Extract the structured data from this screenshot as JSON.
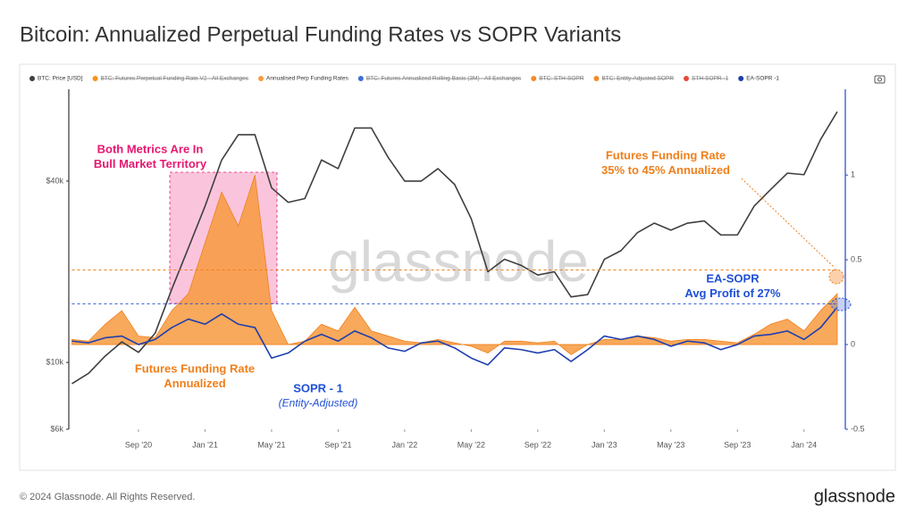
{
  "chart_data": {
    "type": "line",
    "title": "Bitcoin: Annualized Perpetual Funding Rates vs SOPR Variants",
    "watermark": "glassnode",
    "x": [
      "2020-05",
      "2020-06",
      "2020-07",
      "2020-08",
      "2020-09",
      "2020-10",
      "2020-11",
      "2020-12",
      "2021-01",
      "2021-02",
      "2021-03",
      "2021-04",
      "2021-05",
      "2021-06",
      "2021-07",
      "2021-08",
      "2021-09",
      "2021-10",
      "2021-11",
      "2021-12",
      "2022-01",
      "2022-02",
      "2022-03",
      "2022-04",
      "2022-05",
      "2022-06",
      "2022-07",
      "2022-08",
      "2022-09",
      "2022-10",
      "2022-11",
      "2022-12",
      "2023-01",
      "2023-02",
      "2023-03",
      "2023-04",
      "2023-05",
      "2023-06",
      "2023-07",
      "2023-08",
      "2023-09",
      "2023-10",
      "2023-11",
      "2023-12",
      "2024-01",
      "2024-02",
      "2024-03"
    ],
    "xlim": [
      "2020-05",
      "2024-03"
    ],
    "xticks": [
      {
        "value": "2020-09",
        "label": "Sep '20"
      },
      {
        "value": "2021-01",
        "label": "Jan '21"
      },
      {
        "value": "2021-05",
        "label": "May '21"
      },
      {
        "value": "2021-09",
        "label": "Sep '21"
      },
      {
        "value": "2022-01",
        "label": "Jan '22"
      },
      {
        "value": "2022-05",
        "label": "May '22"
      },
      {
        "value": "2022-09",
        "label": "Sep '22"
      },
      {
        "value": "2023-01",
        "label": "Jan '23"
      },
      {
        "value": "2023-05",
        "label": "May '23"
      },
      {
        "value": "2023-09",
        "label": "Sep '23"
      },
      {
        "value": "2024-01",
        "label": "Jan '24"
      }
    ],
    "ylim": [
      6000,
      78000
    ],
    "y_scale": "log",
    "yticks": [
      {
        "value": 6000,
        "label": "$6k"
      },
      {
        "value": 10000,
        "label": "$10k"
      },
      {
        "value": 40000,
        "label": "$40k"
      }
    ],
    "y2lim": [
      -0.5,
      1.48
    ],
    "y2ticks": [
      -0.5,
      0,
      0.5,
      1
    ],
    "series": [
      {
        "name": "BTC: Price [USD]",
        "color": "#3f3f3f",
        "values": [
          8500,
          9200,
          10500,
          11700,
          10800,
          12500,
          17500,
          24000,
          33000,
          47000,
          57000,
          57000,
          38000,
          34000,
          35000,
          47000,
          44000,
          60000,
          60000,
          48000,
          40000,
          40000,
          44000,
          39000,
          30000,
          20000,
          22000,
          21000,
          19500,
          20000,
          16500,
          16800,
          22000,
          23500,
          27000,
          29000,
          27500,
          29000,
          29500,
          26500,
          26500,
          33000,
          37500,
          42500,
          42000,
          55000,
          68000
        ]
      },
      {
        "name": "BTC: Futures Perpetual Funding Rate V2 - All Exchanges",
        "color": "#f7931a",
        "hidden": true
      },
      {
        "name": "Annualised Perp Funding Rates",
        "color": "#f79a3e",
        "axis": "y2",
        "style": "area",
        "values": [
          0.03,
          0.02,
          0.12,
          0.2,
          0.05,
          0.04,
          0.2,
          0.3,
          0.6,
          0.9,
          0.7,
          1.0,
          0.2,
          0.0,
          0.02,
          0.12,
          0.08,
          0.22,
          0.08,
          0.05,
          0.02,
          0.01,
          0.03,
          0.01,
          -0.01,
          -0.05,
          0.02,
          0.02,
          0.01,
          0.02,
          -0.06,
          0.0,
          0.03,
          0.03,
          0.05,
          0.04,
          0.02,
          0.03,
          0.03,
          0.02,
          0.01,
          0.06,
          0.12,
          0.15,
          0.08,
          0.2,
          0.3
        ]
      },
      {
        "name": "BTC: Futures Annualized Rolling Basis (3M) - All Exchanges",
        "color": "#3c6ddb",
        "hidden": true
      },
      {
        "name": "BTC: STH-SOPR",
        "color": "#f28c28",
        "hidden": true
      },
      {
        "name": "BTC: Entity-Adjusted SOPR",
        "color": "#f28c28",
        "hidden": true
      },
      {
        "name": "STH-SOPR -1",
        "color": "#e5493a",
        "hidden": true
      },
      {
        "name": "EA-SOPR -1",
        "color": "#1f3fae",
        "axis": "y2",
        "values": [
          0.02,
          0.01,
          0.04,
          0.05,
          0.0,
          0.03,
          0.1,
          0.15,
          0.12,
          0.18,
          0.12,
          0.1,
          -0.08,
          -0.05,
          0.02,
          0.06,
          0.02,
          0.08,
          0.04,
          -0.02,
          -0.04,
          0.01,
          0.02,
          -0.02,
          -0.08,
          -0.12,
          -0.02,
          -0.03,
          -0.05,
          -0.03,
          -0.1,
          -0.03,
          0.05,
          0.03,
          0.05,
          0.03,
          -0.01,
          0.02,
          0.01,
          -0.03,
          0.0,
          0.05,
          0.06,
          0.08,
          0.03,
          0.1,
          0.22
        ]
      }
    ],
    "reference_lines": [
      {
        "value": 0.44,
        "color": "#f07f1b"
      },
      {
        "value": 0.24,
        "color": "#1f50d6"
      }
    ],
    "annotations": [
      {
        "lines": [
          "Both Metrics Are In",
          "Bull Market Territory"
        ],
        "color": "#e6176f"
      },
      {
        "lines": [
          "Futures Funding Rate",
          "35% to 45% Annualized"
        ],
        "color": "#f07f1b"
      },
      {
        "lines": [
          "EA-SOPR",
          "Avg Profit of 27%"
        ],
        "color": "#1f50d6"
      },
      {
        "lines": [
          "Futures Funding Rate",
          "Annualized"
        ],
        "color": "#f07f1b"
      },
      {
        "lines": [
          "SOPR - 1",
          "(Entity-Adjusted)"
        ],
        "color": "#1f50d6"
      }
    ]
  },
  "footer": {
    "copyright": "© 2024 Glassnode. All Rights Reserved.",
    "logo": "glassnode"
  }
}
